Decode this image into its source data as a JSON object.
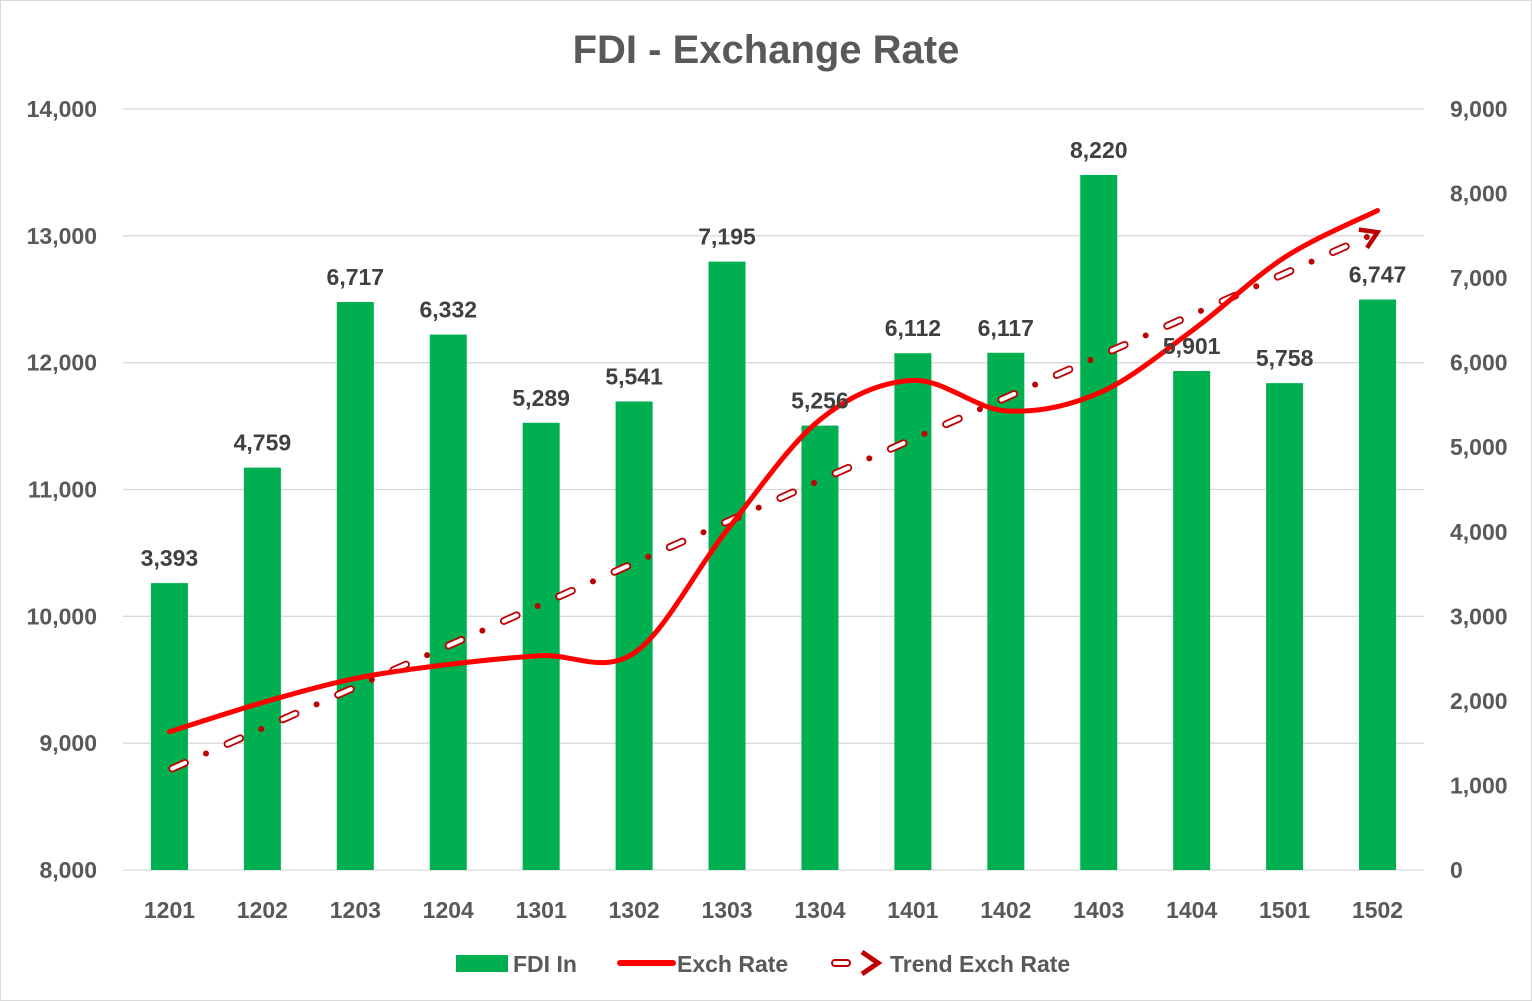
{
  "chart_data": {
    "type": "bar",
    "title": "FDI - Exchange Rate",
    "xlabel": "",
    "ylabel": "",
    "categories": [
      "1201",
      "1202",
      "1203",
      "1204",
      "1301",
      "1302",
      "1303",
      "1304",
      "1401",
      "1402",
      "1403",
      "1404",
      "1501",
      "1502"
    ],
    "left_axis": {
      "min": 8000,
      "max": 14000,
      "step": 1000,
      "ticks": [
        "8,000",
        "9,000",
        "10,000",
        "11,000",
        "12,000",
        "13,000",
        "14,000"
      ]
    },
    "right_axis": {
      "min": 0,
      "max": 9000,
      "step": 1000,
      "ticks": [
        "0",
        "1,000",
        "2,000",
        "3,000",
        "4,000",
        "5,000",
        "6,000",
        "7,000",
        "8,000",
        "9,000"
      ]
    },
    "grid": true,
    "legend_position": "bottom",
    "series": [
      {
        "name": "FDI In",
        "type": "bar",
        "axis": "right",
        "color": "#00b050",
        "values": [
          3393,
          4759,
          6717,
          6332,
          5289,
          5541,
          7195,
          5256,
          6112,
          6117,
          8220,
          5901,
          5758,
          6747
        ],
        "labels": [
          "3,393",
          "4,759",
          "6,717",
          "6,332",
          "5,289",
          "5,541",
          "7,195",
          "5,256",
          "6,112",
          "6,117",
          "8,220",
          "5,901",
          "5,758",
          "6,747"
        ]
      },
      {
        "name": "Exch Rate",
        "type": "line",
        "smooth": true,
        "axis": "left",
        "color": "#ff0000",
        "values": [
          9090,
          9320,
          9510,
          9620,
          9690,
          9710,
          10680,
          11550,
          11860,
          11620,
          11760,
          12250,
          12830,
          13200
        ]
      },
      {
        "name": "Trend Exch Rate",
        "type": "trendline",
        "style": "dash-dot",
        "arrow": true,
        "axis": "left",
        "color": "#c00000",
        "values": [
          8790,
          9116,
          9442,
          9768,
          10094,
          10420,
          10746,
          11072,
          11398,
          11724,
          12050,
          12376,
          12702,
          13028
        ]
      }
    ]
  }
}
